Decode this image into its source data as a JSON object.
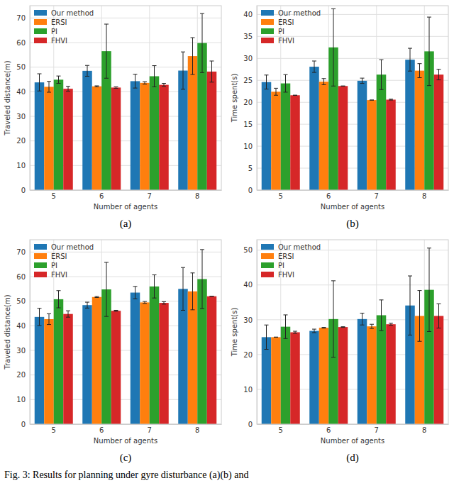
{
  "chart_data": [
    {
      "type": "bar",
      "caption": "(a)",
      "x_label": "Number of agents",
      "y_label": "Traveled distance(m)",
      "categories": [
        "5",
        "6",
        "7",
        "8"
      ],
      "ylim": [
        0,
        75
      ],
      "yticks": [
        0,
        10,
        20,
        30,
        40,
        50,
        60,
        70
      ],
      "grid": true,
      "legend": "upper left",
      "series": [
        {
          "name": "Our method",
          "color": "#1f77b4",
          "values": [
            43.8,
            48.5,
            44.3,
            48.6
          ],
          "errors": [
            3.5,
            2.2,
            2.8,
            7.6
          ]
        },
        {
          "name": "ERSI",
          "color": "#ff7f0e",
          "values": [
            42.0,
            42.2,
            43.6,
            54.5
          ],
          "errors": [
            2.2,
            0.2,
            0.5,
            7.5
          ]
        },
        {
          "name": "PI",
          "color": "#2ca02c",
          "values": [
            44.9,
            56.5,
            46.3,
            59.8
          ],
          "errors": [
            1.5,
            11.0,
            4.3,
            12.0
          ]
        },
        {
          "name": "FHVI",
          "color": "#d62728",
          "values": [
            41.2,
            41.7,
            42.8,
            48.2
          ],
          "errors": [
            1.0,
            0.3,
            0.6,
            4.3
          ]
        }
      ]
    },
    {
      "type": "bar",
      "caption": "(b)",
      "x_label": "Number of agents",
      "y_label": "Time spent(s)",
      "categories": [
        "5",
        "6",
        "7",
        "8"
      ],
      "ylim": [
        0,
        42
      ],
      "yticks": [
        0,
        5,
        10,
        15,
        20,
        25,
        30,
        35,
        40
      ],
      "grid": true,
      "legend": "upper left",
      "series": [
        {
          "name": "Our method",
          "color": "#1f77b4",
          "values": [
            24.6,
            28.1,
            24.9,
            29.7
          ],
          "errors": [
            1.6,
            1.3,
            0.6,
            2.6
          ]
        },
        {
          "name": "ERSI",
          "color": "#ff7f0e",
          "values": [
            22.4,
            24.7,
            20.5,
            27.2
          ],
          "errors": [
            0.8,
            0.7,
            0.0,
            1.6
          ]
        },
        {
          "name": "PI",
          "color": "#2ca02c",
          "values": [
            24.3,
            32.5,
            26.3,
            31.6
          ],
          "errors": [
            2.0,
            8.8,
            3.4,
            7.8
          ]
        },
        {
          "name": "FHVI",
          "color": "#d62728",
          "values": [
            21.6,
            23.7,
            20.6,
            26.3
          ],
          "errors": [
            0.0,
            0.0,
            0.1,
            1.2
          ]
        }
      ]
    },
    {
      "type": "bar",
      "caption": "(c)",
      "x_label": "Number of agents",
      "y_label": "Traveled distance(m)",
      "categories": [
        "5",
        "6",
        "7",
        "8"
      ],
      "ylim": [
        0,
        75
      ],
      "yticks": [
        0,
        10,
        20,
        30,
        40,
        50,
        60,
        70
      ],
      "grid": true,
      "legend": "upper left",
      "series": [
        {
          "name": "Our method",
          "color": "#1f77b4",
          "values": [
            43.6,
            48.4,
            53.5,
            55.0
          ],
          "errors": [
            3.5,
            1.2,
            2.5,
            8.7
          ]
        },
        {
          "name": "ERSI",
          "color": "#ff7f0e",
          "values": [
            42.7,
            51.7,
            49.5,
            54.0
          ],
          "errors": [
            2.2,
            0.2,
            0.4,
            7.5
          ]
        },
        {
          "name": "PI",
          "color": "#2ca02c",
          "values": [
            50.8,
            54.8,
            56.0,
            59.0
          ],
          "errors": [
            3.5,
            11.0,
            4.7,
            12.0
          ]
        },
        {
          "name": "FHVI",
          "color": "#d62728",
          "values": [
            44.8,
            46.1,
            49.3,
            52.0
          ],
          "errors": [
            1.3,
            0.2,
            0.5,
            0.0
          ]
        }
      ]
    },
    {
      "type": "bar",
      "caption": "(d)",
      "x_label": "Number of agents",
      "y_label": "Time spent(s)",
      "categories": [
        "5",
        "6",
        "7",
        "8"
      ],
      "ylim": [
        0,
        53
      ],
      "yticks": [
        0,
        10,
        20,
        30,
        40,
        50
      ],
      "grid": true,
      "legend": "upper left",
      "series": [
        {
          "name": "Our method",
          "color": "#1f77b4",
          "values": [
            25.0,
            26.8,
            30.2,
            34.1
          ],
          "errors": [
            3.5,
            0.5,
            1.7,
            8.5
          ]
        },
        {
          "name": "ERSI",
          "color": "#ff7f0e",
          "values": [
            25.0,
            27.7,
            28.1,
            31.1
          ],
          "errors": [
            0.0,
            0.1,
            0.6,
            7.3
          ]
        },
        {
          "name": "PI",
          "color": "#2ca02c",
          "values": [
            28.0,
            30.2,
            31.3,
            38.6
          ],
          "errors": [
            3.4,
            11.0,
            4.4,
            12.0
          ]
        },
        {
          "name": "FHVI",
          "color": "#d62728",
          "values": [
            26.4,
            27.9,
            28.7,
            31.1
          ],
          "errors": [
            0.3,
            0.1,
            0.3,
            3.5
          ]
        }
      ]
    }
  ],
  "figure_caption": "Fig. 3: Results for planning under gyre disturbance (a)(b) and"
}
